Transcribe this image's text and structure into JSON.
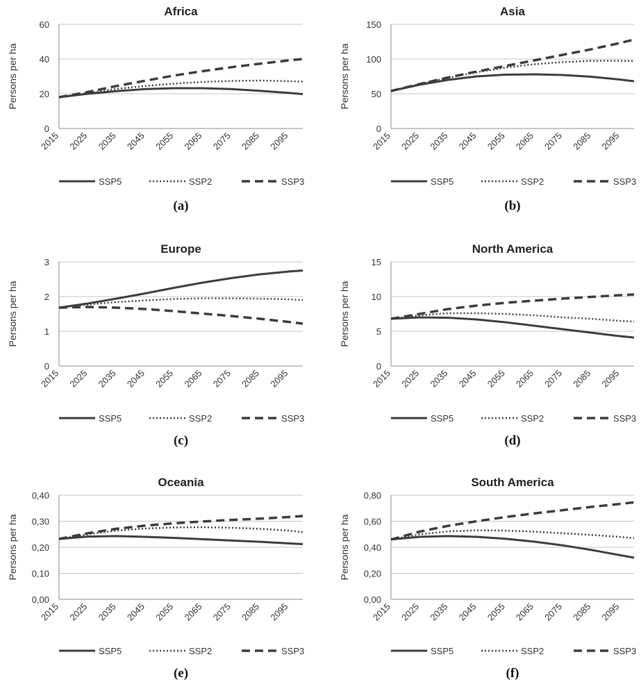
{
  "chart_data": [
    {
      "type": "line",
      "title": "Africa",
      "panel_label": "(a)",
      "ylabel": "Persons per ha",
      "ylim": [
        0,
        60
      ],
      "yticks": [
        "0",
        "20",
        "40",
        "60"
      ],
      "x_tick_labels": [
        "2015",
        "2025",
        "2035",
        "2045",
        "2055",
        "2065",
        "2075",
        "2085",
        "2095"
      ],
      "x_range": [
        2015,
        2100
      ],
      "grid": "horizontal",
      "legend_position": "bottom",
      "series": [
        {
          "name": "SSP5",
          "style": "solid",
          "x": [
            2015,
            2025,
            2035,
            2045,
            2055,
            2065,
            2075,
            2085,
            2095,
            2100
          ],
          "values": [
            18,
            20,
            21.5,
            22.7,
            23.2,
            23.2,
            22.7,
            21.7,
            20.5,
            19.8
          ]
        },
        {
          "name": "SSP2",
          "style": "dotted",
          "x": [
            2015,
            2025,
            2035,
            2045,
            2055,
            2065,
            2075,
            2085,
            2095,
            2100
          ],
          "values": [
            18,
            20.5,
            22.8,
            24.5,
            25.8,
            26.8,
            27.4,
            27.6,
            27.3,
            27
          ]
        },
        {
          "name": "SSP3",
          "style": "dashed",
          "x": [
            2015,
            2025,
            2035,
            2045,
            2055,
            2065,
            2075,
            2085,
            2095,
            2100
          ],
          "values": [
            18,
            21,
            24.5,
            27.5,
            30.5,
            33,
            35.3,
            37.3,
            39.2,
            40
          ]
        }
      ]
    },
    {
      "type": "line",
      "title": "Asia",
      "panel_label": "(b)",
      "ylabel": "Persons per ha",
      "ylim": [
        0,
        150
      ],
      "yticks": [
        "0",
        "50",
        "100",
        "150"
      ],
      "x_tick_labels": [
        "2015",
        "2025",
        "2035",
        "2045",
        "2055",
        "2065",
        "2075",
        "2085",
        "2095"
      ],
      "x_range": [
        2015,
        2100
      ],
      "grid": "horizontal",
      "legend_position": "bottom",
      "series": [
        {
          "name": "SSP5",
          "style": "solid",
          "x": [
            2015,
            2025,
            2035,
            2045,
            2055,
            2065,
            2075,
            2085,
            2095,
            2100
          ],
          "values": [
            54,
            63,
            70,
            75,
            77.5,
            78,
            77,
            74.5,
            70.5,
            68
          ]
        },
        {
          "name": "SSP2",
          "style": "dotted",
          "x": [
            2015,
            2025,
            2035,
            2045,
            2055,
            2065,
            2075,
            2085,
            2095,
            2100
          ],
          "values": [
            54,
            64,
            73,
            81,
            87.5,
            92.5,
            95.5,
            97.5,
            97.5,
            97
          ]
        },
        {
          "name": "SSP3",
          "style": "dashed",
          "x": [
            2015,
            2025,
            2035,
            2045,
            2055,
            2065,
            2075,
            2085,
            2095,
            2100
          ],
          "values": [
            54,
            64,
            73.5,
            82,
            90,
            98,
            106,
            114,
            123,
            128
          ]
        }
      ]
    },
    {
      "type": "line",
      "title": "Europe",
      "panel_label": "(c)",
      "ylabel": "Persons per ha",
      "ylim": [
        0,
        3
      ],
      "yticks": [
        "0",
        "1",
        "2",
        "3"
      ],
      "x_tick_labels": [
        "2015",
        "2025",
        "2035",
        "2045",
        "2055",
        "2065",
        "2075",
        "2085",
        "2095"
      ],
      "x_range": [
        2015,
        2100
      ],
      "grid": "horizontal",
      "legend_position": "bottom",
      "series": [
        {
          "name": "SSP5",
          "style": "solid",
          "x": [
            2015,
            2025,
            2035,
            2045,
            2055,
            2065,
            2075,
            2085,
            2095,
            2100
          ],
          "values": [
            1.68,
            1.8,
            1.94,
            2.09,
            2.25,
            2.4,
            2.53,
            2.64,
            2.72,
            2.75
          ]
        },
        {
          "name": "SSP2",
          "style": "dotted",
          "x": [
            2015,
            2025,
            2035,
            2045,
            2055,
            2065,
            2075,
            2085,
            2095,
            2100
          ],
          "values": [
            1.68,
            1.77,
            1.84,
            1.89,
            1.93,
            1.95,
            1.95,
            1.94,
            1.92,
            1.9
          ]
        },
        {
          "name": "SSP3",
          "style": "dashed",
          "x": [
            2015,
            2025,
            2035,
            2045,
            2055,
            2065,
            2075,
            2085,
            2095,
            2100
          ],
          "values": [
            1.68,
            1.7,
            1.68,
            1.64,
            1.58,
            1.51,
            1.44,
            1.36,
            1.27,
            1.22
          ]
        }
      ]
    },
    {
      "type": "line",
      "title": "North America",
      "panel_label": "(d)",
      "ylabel": "Persons per ha",
      "ylim": [
        0,
        15
      ],
      "yticks": [
        "0",
        "5",
        "10",
        "15"
      ],
      "x_tick_labels": [
        "2015",
        "2025",
        "2035",
        "2045",
        "2055",
        "2065",
        "2075",
        "2085",
        "2095"
      ],
      "x_range": [
        2015,
        2100
      ],
      "grid": "horizontal",
      "legend_position": "bottom",
      "series": [
        {
          "name": "SSP5",
          "style": "solid",
          "x": [
            2015,
            2025,
            2035,
            2045,
            2055,
            2065,
            2075,
            2085,
            2095,
            2100
          ],
          "values": [
            6.8,
            7.0,
            6.95,
            6.7,
            6.3,
            5.8,
            5.3,
            4.8,
            4.3,
            4.1
          ]
        },
        {
          "name": "SSP2",
          "style": "dotted",
          "x": [
            2015,
            2025,
            2035,
            2045,
            2055,
            2065,
            2075,
            2085,
            2095,
            2100
          ],
          "values": [
            6.8,
            7.3,
            7.6,
            7.6,
            7.5,
            7.3,
            7.0,
            6.8,
            6.5,
            6.4
          ]
        },
        {
          "name": "SSP3",
          "style": "dashed",
          "x": [
            2015,
            2025,
            2035,
            2045,
            2055,
            2065,
            2075,
            2085,
            2095,
            2100
          ],
          "values": [
            6.8,
            7.5,
            8.2,
            8.7,
            9.1,
            9.4,
            9.7,
            9.95,
            10.2,
            10.3
          ]
        }
      ]
    },
    {
      "type": "line",
      "title": "Oceania",
      "panel_label": "(e)",
      "ylabel": "Persons per ha",
      "ylim": [
        0,
        0.4
      ],
      "yticks": [
        "0,00",
        "0,10",
        "0,20",
        "0,30",
        "0,40"
      ],
      "x_tick_labels": [
        "2015",
        "2025",
        "2035",
        "2045",
        "2055",
        "2065",
        "2075",
        "2085",
        "2095"
      ],
      "x_range": [
        2015,
        2100
      ],
      "grid": "horizontal",
      "legend_position": "bottom",
      "series": [
        {
          "name": "SSP5",
          "style": "solid",
          "x": [
            2015,
            2025,
            2035,
            2045,
            2055,
            2065,
            2075,
            2085,
            2095,
            2100
          ],
          "values": [
            0.232,
            0.241,
            0.243,
            0.24,
            0.236,
            0.231,
            0.226,
            0.221,
            0.215,
            0.212
          ]
        },
        {
          "name": "SSP2",
          "style": "dotted",
          "x": [
            2015,
            2025,
            2035,
            2045,
            2055,
            2065,
            2075,
            2085,
            2095,
            2100
          ],
          "values": [
            0.232,
            0.25,
            0.264,
            0.272,
            0.276,
            0.277,
            0.275,
            0.271,
            0.264,
            0.258
          ]
        },
        {
          "name": "SSP3",
          "style": "dashed",
          "x": [
            2015,
            2025,
            2035,
            2045,
            2055,
            2065,
            2075,
            2085,
            2095,
            2100
          ],
          "values": [
            0.232,
            0.254,
            0.271,
            0.283,
            0.292,
            0.299,
            0.305,
            0.31,
            0.316,
            0.32
          ]
        }
      ]
    },
    {
      "type": "line",
      "title": "South America",
      "panel_label": "(f)",
      "ylabel": "Persons per ha",
      "ylim": [
        0,
        0.8
      ],
      "yticks": [
        "0,00",
        "0,20",
        "0,40",
        "0,60",
        "0,80"
      ],
      "x_tick_labels": [
        "2015",
        "2025",
        "2035",
        "2045",
        "2055",
        "2065",
        "2075",
        "2085",
        "2095"
      ],
      "x_range": [
        2015,
        2100
      ],
      "grid": "horizontal",
      "legend_position": "bottom",
      "series": [
        {
          "name": "SSP5",
          "style": "solid",
          "x": [
            2015,
            2025,
            2035,
            2045,
            2055,
            2065,
            2075,
            2085,
            2095,
            2100
          ],
          "values": [
            0.46,
            0.48,
            0.486,
            0.48,
            0.465,
            0.443,
            0.415,
            0.38,
            0.34,
            0.32
          ]
        },
        {
          "name": "SSP2",
          "style": "dotted",
          "x": [
            2015,
            2025,
            2035,
            2045,
            2055,
            2065,
            2075,
            2085,
            2095,
            2100
          ],
          "values": [
            0.46,
            0.5,
            0.522,
            0.53,
            0.528,
            0.52,
            0.508,
            0.495,
            0.48,
            0.47
          ]
        },
        {
          "name": "SSP3",
          "style": "dashed",
          "x": [
            2015,
            2025,
            2035,
            2045,
            2055,
            2065,
            2075,
            2085,
            2095,
            2100
          ],
          "values": [
            0.46,
            0.52,
            0.565,
            0.6,
            0.632,
            0.66,
            0.685,
            0.71,
            0.733,
            0.745
          ]
        }
      ]
    }
  ]
}
